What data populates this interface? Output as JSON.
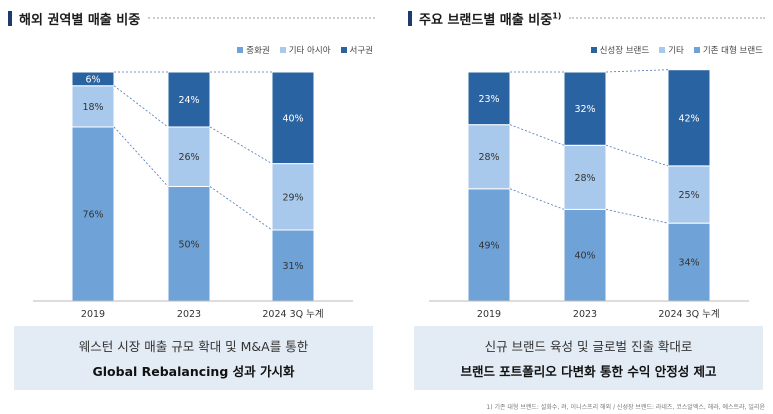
{
  "left": {
    "title": "해외 권역별 매출 비중",
    "title_sup": "",
    "legend": [
      {
        "label": "중화권",
        "color": "#6fa3d8"
      },
      {
        "label": "기타 아시아",
        "color": "#a9c9ec"
      },
      {
        "label": "서구권",
        "color": "#2a63a2"
      }
    ],
    "caption_line1": "웨스턴 시장 매출 규모 확대 및 M&A를 통한",
    "caption_line2": "Global Rebalancing 성과 가시화",
    "chart_data": {
      "type": "bar",
      "stacked": true,
      "percent": true,
      "categories": [
        "2019",
        "2023",
        "2024 3Q 누계"
      ],
      "series": [
        {
          "name": "중화권",
          "values": [
            76,
            50,
            31
          ],
          "color": "#6fa3d8"
        },
        {
          "name": "기타 아시아",
          "values": [
            18,
            26,
            29
          ],
          "color": "#a9c9ec"
        },
        {
          "name": "서구권",
          "values": [
            6,
            24,
            40
          ],
          "color": "#2a63a2"
        }
      ],
      "value_suffix": "%",
      "legend_position": "top-right",
      "grid": false
    }
  },
  "right": {
    "title": "주요 브랜드별 매출 비중",
    "title_sup": "1)",
    "legend": [
      {
        "label": "신성장 브랜드",
        "color": "#2a63a2"
      },
      {
        "label": "기타",
        "color": "#a9c9ec"
      },
      {
        "label": "기존 대형 브랜드",
        "color": "#6fa3d8"
      }
    ],
    "caption_line1": "신규 브랜드 육성 및 글로벌 진출 확대로",
    "caption_line2": "브랜드 포트폴리오 다변화 통한 수익 안정성 제고",
    "chart_data": {
      "type": "bar",
      "stacked": true,
      "percent": true,
      "categories": [
        "2019",
        "2023",
        "2024 3Q 누계"
      ],
      "series": [
        {
          "name": "기존 대형 브랜드",
          "values": [
            49,
            40,
            34
          ],
          "color": "#6fa3d8"
        },
        {
          "name": "기타",
          "values": [
            28,
            28,
            25
          ],
          "color": "#a9c9ec"
        },
        {
          "name": "신성장 브랜드",
          "values": [
            23,
            32,
            42
          ],
          "color": "#2a63a2"
        }
      ],
      "value_suffix": "%",
      "legend_position": "top-right",
      "grid": false
    }
  },
  "footnote": "1) 기존 대형 브랜드: 설화수, 려, 이니스프리 해외 / 신성장 브랜드: 라네즈, 코스알엑스, 헤라, 에스트라, 일리윤"
}
